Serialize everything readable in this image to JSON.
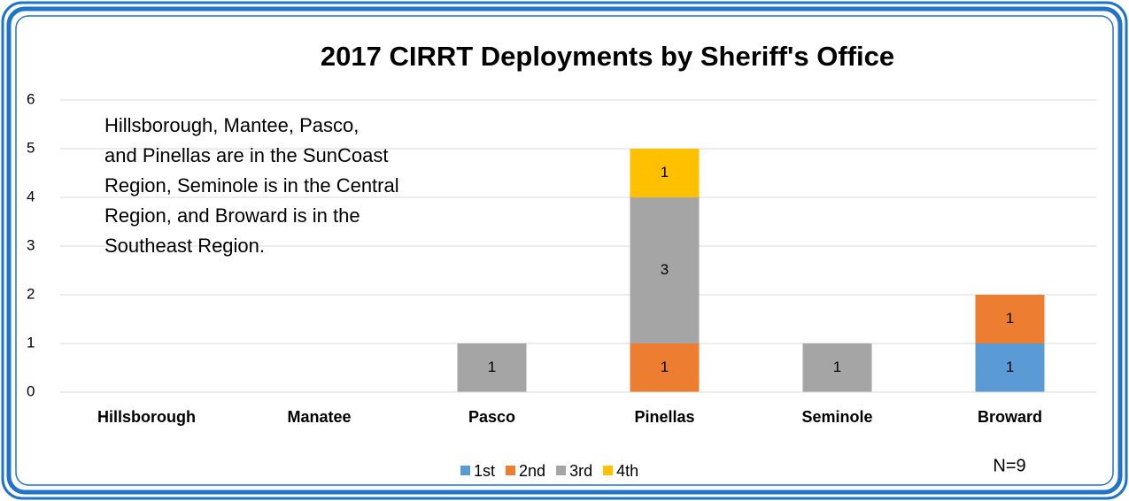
{
  "chart_data": {
    "type": "stacked-bar",
    "title": "2017 CIRRT Deployments by Sheriff's Office",
    "annotation": [
      "Hillsborough, Mantee, Pasco,",
      "and Pinellas are in the SunCoast",
      "Region, Seminole is in the Central",
      "Region, and Broward is in the",
      "Southeast Region."
    ],
    "note": "N=9",
    "categories": [
      "Hillsborough",
      "Manatee",
      "Pasco",
      "Pinellas",
      "Seminole",
      "Broward"
    ],
    "series": [
      {
        "name": "1st",
        "color": "#5b9bd5",
        "values": [
          0,
          0,
          0,
          0,
          0,
          1
        ]
      },
      {
        "name": "2nd",
        "color": "#ed7d31",
        "values": [
          0,
          0,
          0,
          1,
          0,
          1
        ]
      },
      {
        "name": "3rd",
        "color": "#a5a5a5",
        "values": [
          0,
          0,
          1,
          3,
          1,
          0
        ]
      },
      {
        "name": "4th",
        "color": "#ffc000",
        "values": [
          0,
          0,
          0,
          1,
          0,
          0
        ]
      }
    ],
    "ylim": [
      0,
      6
    ],
    "yticks": [
      0,
      1,
      2,
      3,
      4,
      5,
      6
    ],
    "grid": true,
    "legend": "bottom"
  }
}
